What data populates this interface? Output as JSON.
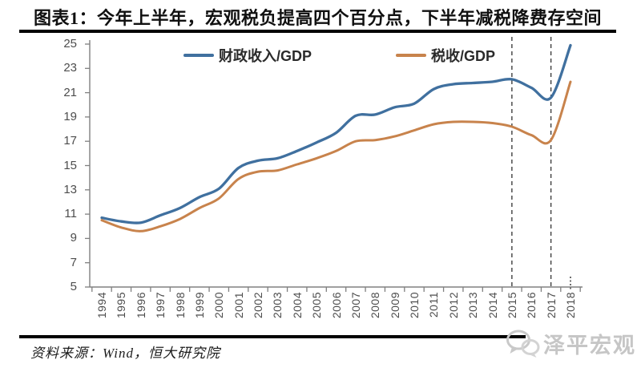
{
  "header": {
    "title": "图表1：今年上半年，宏观税负提高四个百分点，下半年减税降费存空间"
  },
  "chart_data": {
    "type": "line",
    "title": "图表1：今年上半年，宏观税负提高四个百分点，下半年减税降费存空间",
    "categories": [
      "1994",
      "1995",
      "1996",
      "1997",
      "1998",
      "1999",
      "2000",
      "2001",
      "2002",
      "2003",
      "2004",
      "2005",
      "2006",
      "2007",
      "2008",
      "2009",
      "2010",
      "2011",
      "2012",
      "2013",
      "2014",
      "2015",
      "2016",
      "2017",
      "2018"
    ],
    "series": [
      {
        "name": "财政收入/GDP",
        "color": "#40709f",
        "values": [
          10.7,
          10.4,
          10.3,
          10.9,
          11.5,
          12.4,
          13.1,
          14.8,
          15.4,
          15.6,
          16.2,
          16.9,
          17.7,
          19.1,
          19.2,
          19.8,
          20.1,
          21.3,
          21.7,
          21.8,
          21.9,
          22.1,
          21.4,
          20.6,
          24.9
        ]
      },
      {
        "name": "税收/GDP",
        "color": "#c8834c",
        "values": [
          10.5,
          9.9,
          9.6,
          10.0,
          10.6,
          11.5,
          12.3,
          13.9,
          14.5,
          14.6,
          15.1,
          15.6,
          16.2,
          17.0,
          17.1,
          17.4,
          17.9,
          18.4,
          18.6,
          18.6,
          18.5,
          18.2,
          17.5,
          17.1,
          21.9
        ]
      }
    ],
    "xlabel": "",
    "ylabel": "",
    "ylim": [
      5,
      25
    ],
    "yticks": [
      5,
      7,
      9,
      11,
      13,
      15,
      17,
      19,
      21,
      23,
      25
    ],
    "grid": false,
    "legend_position": "top",
    "annotations": {
      "dashed_vlines": [
        "2015",
        "2017"
      ],
      "dotted_axis_mark": "2018"
    },
    "axis_color": "#808080",
    "dash_color": "#3f3f3f"
  },
  "footer": {
    "source": "资料来源：Wind，恒大研究院",
    "watermark": "泽平宏观",
    "watermark_icon": "wechat-icon"
  }
}
